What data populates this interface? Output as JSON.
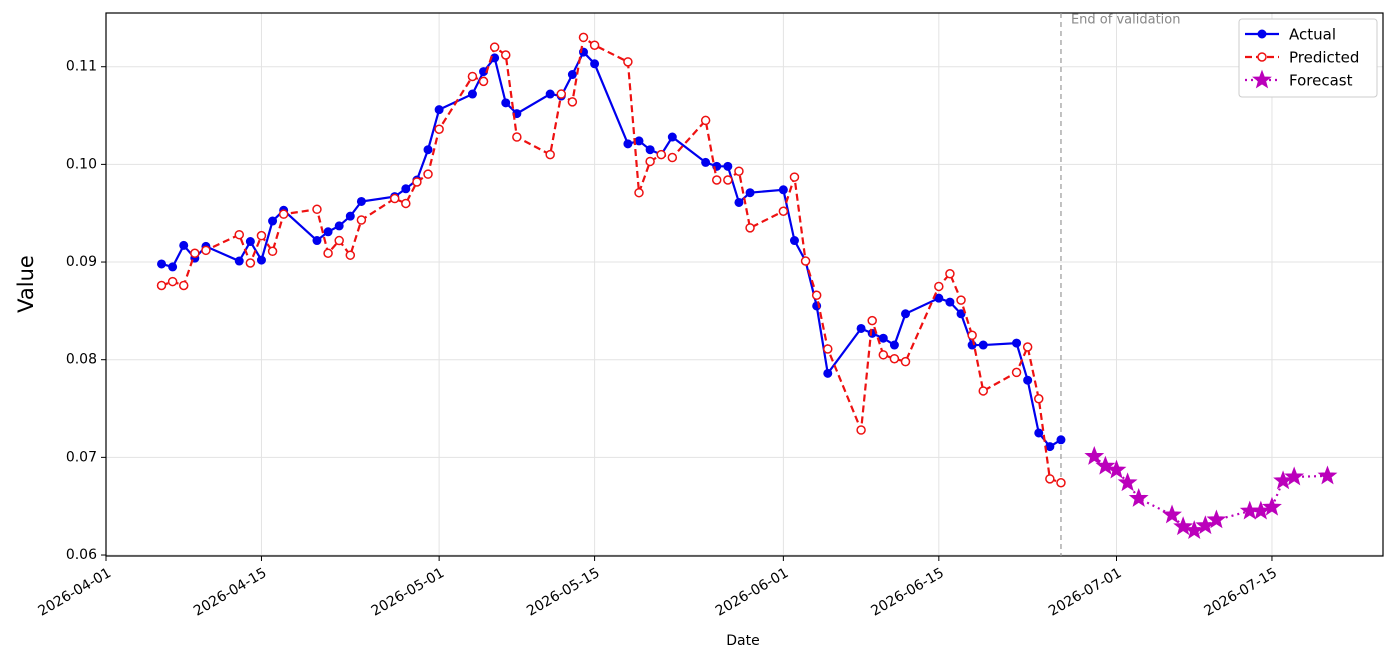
{
  "chart_data": {
    "type": "line",
    "x_label": "Date",
    "y_label": "Value",
    "xlim": [
      "2026-04-01",
      "2026-07-25"
    ],
    "xticks": [
      "2026-04-01",
      "2026-04-15",
      "2026-05-01",
      "2026-05-15",
      "2026-06-01",
      "2026-06-15",
      "2026-07-01",
      "2026-07-15"
    ],
    "ylim": [
      0.0599,
      0.1155
    ],
    "yticks": [
      0.06,
      0.07,
      0.08,
      0.09,
      {
        "value": 0.1,
        "label": "0.10"
      },
      0.11
    ],
    "grid": true,
    "legend": "upper right",
    "annotations": [
      {
        "text": "End of validation",
        "x": "2026-06-26"
      }
    ],
    "series": [
      {
        "name": "Actual",
        "color": "#0000ee",
        "linestyle": "solid",
        "marker": "filled-circle",
        "x": [
          "2026-04-06",
          "2026-04-07",
          "2026-04-08",
          "2026-04-09",
          "2026-04-10",
          "2026-04-13",
          "2026-04-14",
          "2026-04-15",
          "2026-04-16",
          "2026-04-17",
          "2026-04-20",
          "2026-04-21",
          "2026-04-22",
          "2026-04-23",
          "2026-04-24",
          "2026-04-27",
          "2026-04-28",
          "2026-04-29",
          "2026-04-30",
          "2026-05-01",
          "2026-05-04",
          "2026-05-05",
          "2026-05-06",
          "2026-05-07",
          "2026-05-08",
          "2026-05-11",
          "2026-05-12",
          "2026-05-13",
          "2026-05-14",
          "2026-05-15",
          "2026-05-18",
          "2026-05-19",
          "2026-05-20",
          "2026-05-21",
          "2026-05-22",
          "2026-05-25",
          "2026-05-26",
          "2026-05-27",
          "2026-05-28",
          "2026-05-29",
          "2026-06-01",
          "2026-06-02",
          "2026-06-03",
          "2026-06-04",
          "2026-06-05",
          "2026-06-08",
          "2026-06-09",
          "2026-06-10",
          "2026-06-11",
          "2026-06-12",
          "2026-06-15",
          "2026-06-16",
          "2026-06-17",
          "2026-06-18",
          "2026-06-19",
          "2026-06-22",
          "2026-06-23",
          "2026-06-24",
          "2026-06-25",
          "2026-06-26"
        ],
        "values": [
          0.0898,
          0.0895,
          0.0917,
          0.0904,
          0.0916,
          0.0901,
          0.0921,
          0.0902,
          0.0942,
          0.0953,
          0.0922,
          0.0931,
          0.0937,
          0.0947,
          0.0962,
          0.0967,
          0.0975,
          0.0984,
          0.1015,
          0.1056,
          0.1072,
          0.1095,
          0.1109,
          0.1063,
          0.1052,
          0.1072,
          0.107,
          0.1092,
          0.1115,
          0.1103,
          0.1021,
          0.1024,
          0.1015,
          0.101,
          0.1028,
          0.1002,
          0.0998,
          0.0998,
          0.0961,
          0.0971,
          0.0974,
          0.0922,
          0.0901,
          0.0855,
          0.0786,
          0.0832,
          0.0827,
          0.0822,
          0.0815,
          0.0847,
          0.0863,
          0.0859,
          0.0847,
          0.0815,
          0.0815,
          0.0817,
          0.0779,
          0.0725,
          0.0711,
          0.0718
        ]
      },
      {
        "name": "Predicted",
        "color": "#ee1111",
        "linestyle": "dashed",
        "marker": "open-circle",
        "x": [
          "2026-04-06",
          "2026-04-07",
          "2026-04-08",
          "2026-04-09",
          "2026-04-10",
          "2026-04-13",
          "2026-04-14",
          "2026-04-15",
          "2026-04-16",
          "2026-04-17",
          "2026-04-20",
          "2026-04-21",
          "2026-04-22",
          "2026-04-23",
          "2026-04-24",
          "2026-04-27",
          "2026-04-28",
          "2026-04-29",
          "2026-04-30",
          "2026-05-01",
          "2026-05-04",
          "2026-05-05",
          "2026-05-06",
          "2026-05-07",
          "2026-05-08",
          "2026-05-11",
          "2026-05-12",
          "2026-05-13",
          "2026-05-14",
          "2026-05-15",
          "2026-05-18",
          "2026-05-19",
          "2026-05-20",
          "2026-05-21",
          "2026-05-22",
          "2026-05-25",
          "2026-05-26",
          "2026-05-27",
          "2026-05-28",
          "2026-05-29",
          "2026-06-01",
          "2026-06-02",
          "2026-06-03",
          "2026-06-04",
          "2026-06-05",
          "2026-06-08",
          "2026-06-09",
          "2026-06-10",
          "2026-06-11",
          "2026-06-12",
          "2026-06-15",
          "2026-06-16",
          "2026-06-17",
          "2026-06-18",
          "2026-06-19",
          "2026-06-22",
          "2026-06-23",
          "2026-06-24",
          "2026-06-25",
          "2026-06-26"
        ],
        "values": [
          0.0876,
          0.088,
          0.0876,
          0.0909,
          0.0912,
          0.0928,
          0.0899,
          0.0927,
          0.0911,
          0.0949,
          0.0954,
          0.0909,
          0.0922,
          0.0907,
          0.0943,
          0.0965,
          0.096,
          0.0982,
          0.099,
          0.1036,
          0.109,
          0.1085,
          0.112,
          0.1112,
          0.1028,
          0.101,
          0.1072,
          0.1064,
          0.113,
          0.1122,
          0.1105,
          0.0971,
          0.1003,
          0.101,
          0.1007,
          0.1045,
          0.0984,
          0.0984,
          0.0993,
          0.0935,
          0.0952,
          0.0987,
          0.0901,
          0.0866,
          0.0811,
          0.0728,
          0.084,
          0.0805,
          0.0801,
          0.0798,
          0.0875,
          0.0888,
          0.0861,
          0.0825,
          0.0768,
          0.0787,
          0.0813,
          0.076,
          0.0678,
          0.0674
        ]
      },
      {
        "name": "Forecast",
        "color": "#bb00bb",
        "linestyle": "dotted",
        "marker": "star",
        "x": [
          "2026-06-29",
          "2026-06-30",
          "2026-07-01",
          "2026-07-02",
          "2026-07-03",
          "2026-07-06",
          "2026-07-07",
          "2026-07-08",
          "2026-07-09",
          "2026-07-10",
          "2026-07-13",
          "2026-07-14",
          "2026-07-15",
          "2026-07-16",
          "2026-07-17",
          "2026-07-20"
        ],
        "values": [
          0.0701,
          0.0691,
          0.0687,
          0.0674,
          0.0658,
          0.0641,
          0.0629,
          0.0625,
          0.063,
          0.0636,
          0.0645,
          0.0645,
          0.0649,
          0.0676,
          0.068,
          0.0681
        ]
      }
    ]
  }
}
